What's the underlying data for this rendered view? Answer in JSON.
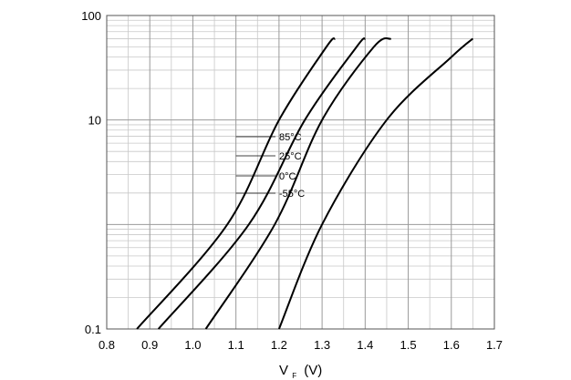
{
  "chart_data": {
    "type": "line",
    "title": "",
    "x_axis": {
      "label": "V",
      "label_subscript": "F",
      "label_suffix": "(V)",
      "min": 0.8,
      "max": 1.7,
      "tick_labels": [
        "0.8",
        "0.9",
        "1.0",
        "1.1",
        "1.2",
        "1.3",
        "1.4",
        "1.5",
        "1.6",
        "1.7"
      ]
    },
    "y_axis": {
      "label": "",
      "scale": "log",
      "min": 0.1,
      "max": 100,
      "tick_labels": [
        "0.1",
        "10",
        "100"
      ]
    },
    "grid": true,
    "series": [
      {
        "name": "85°C",
        "x": [
          0.87,
          1.08,
          1.2,
          1.31,
          1.33
        ],
        "y": [
          0.1,
          1,
          10,
          50,
          60
        ]
      },
      {
        "name": "25°C",
        "x": [
          0.92,
          1.13,
          1.26,
          1.38,
          1.4
        ],
        "y": [
          0.1,
          1,
          10,
          50,
          60
        ]
      },
      {
        "name": "0°C",
        "x": [
          1.03,
          1.19,
          1.3,
          1.42,
          1.46
        ],
        "y": [
          0.1,
          1,
          10,
          50,
          60
        ]
      },
      {
        "name": "-55°C",
        "x": [
          1.2,
          1.3,
          1.45,
          1.6,
          1.65
        ],
        "y": [
          0.1,
          1,
          10,
          40,
          60
        ]
      }
    ],
    "annotations": [
      "85°C",
      "25°C",
      "0°C",
      "-55°C"
    ]
  }
}
